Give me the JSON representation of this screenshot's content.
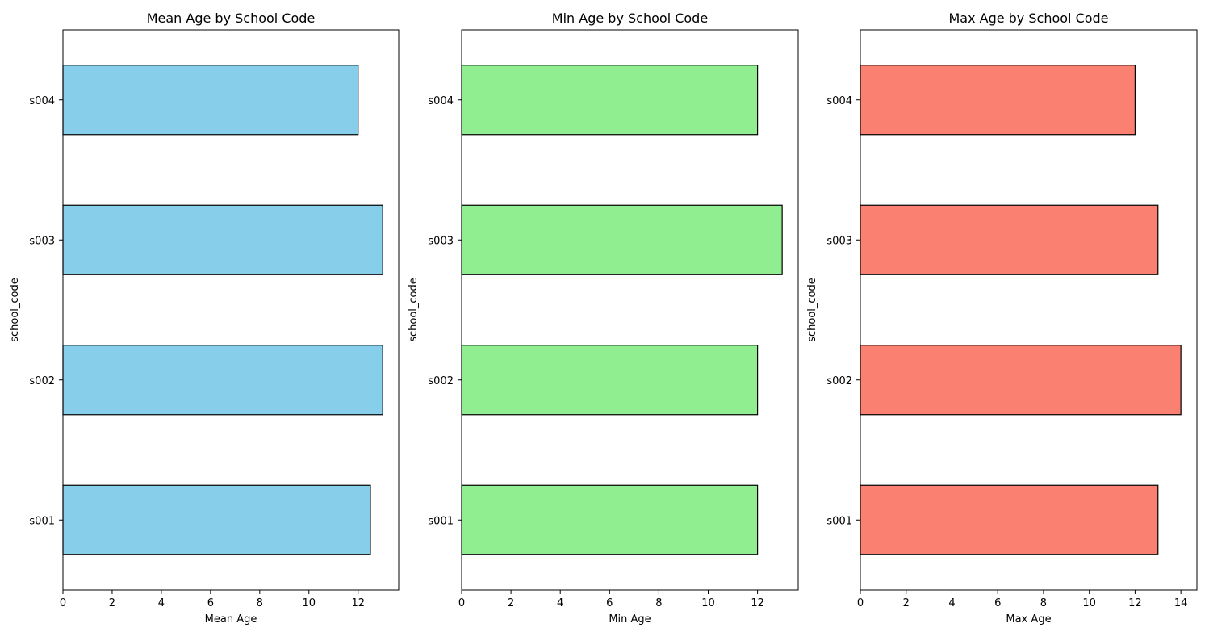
{
  "chart_data": [
    {
      "type": "bar",
      "orientation": "horizontal",
      "title": "Mean Age by School Code",
      "xlabel": "Mean Age",
      "ylabel": "school_code",
      "categories": [
        "s001",
        "s002",
        "s003",
        "s004"
      ],
      "values": [
        12.5,
        13,
        13,
        12
      ],
      "xlim": [
        0,
        13.65
      ],
      "xticks": [
        0,
        2,
        4,
        6,
        8,
        10,
        12
      ],
      "bar_color": "#87ceeb",
      "edge_color": "#000000",
      "grid": false
    },
    {
      "type": "bar",
      "orientation": "horizontal",
      "title": "Min Age by School Code",
      "xlabel": "Min Age",
      "ylabel": "school_code",
      "categories": [
        "s001",
        "s002",
        "s003",
        "s004"
      ],
      "values": [
        12,
        12,
        13,
        12
      ],
      "xlim": [
        0,
        13.65
      ],
      "xticks": [
        0,
        2,
        4,
        6,
        8,
        10,
        12
      ],
      "bar_color": "#90ee90",
      "edge_color": "#000000",
      "grid": false
    },
    {
      "type": "bar",
      "orientation": "horizontal",
      "title": "Max Age by School Code",
      "xlabel": "Max Age",
      "ylabel": "school_code",
      "categories": [
        "s001",
        "s002",
        "s003",
        "s004"
      ],
      "values": [
        13,
        14,
        13,
        12
      ],
      "xlim": [
        0,
        14.7
      ],
      "xticks": [
        0,
        2,
        4,
        6,
        8,
        10,
        12,
        14
      ],
      "bar_color": "#fa8072",
      "edge_color": "#000000",
      "grid": false
    }
  ]
}
